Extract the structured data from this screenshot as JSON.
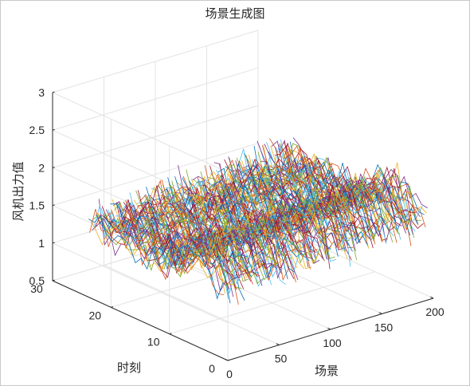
{
  "chart_data": {
    "type": "line",
    "subtype": "3d-scenario-lines",
    "title": "场景生成图",
    "xlabel": "场景",
    "ylabel": "时刻",
    "zlabel": "风机出力值",
    "xlim": [
      0,
      200
    ],
    "ylim": [
      0,
      30
    ],
    "zlim": [
      0.5,
      3
    ],
    "xticks": [
      "0",
      "50",
      "100",
      "150",
      "200"
    ],
    "yticks": [
      "0",
      "10",
      "20",
      "30"
    ],
    "zticks": [
      "0.5",
      "1",
      "1.5",
      "2",
      "2.5",
      "3"
    ],
    "grid": true,
    "scenario_count": 200,
    "time_steps": 24,
    "value_range_approx": [
      0.6,
      2.6
    ],
    "value_mean_approx": 1.5,
    "series_colors": [
      "#0072BD",
      "#D95319",
      "#EDB120",
      "#7E2F8E",
      "#77AC30",
      "#4DBEEE",
      "#A2142F"
    ]
  }
}
